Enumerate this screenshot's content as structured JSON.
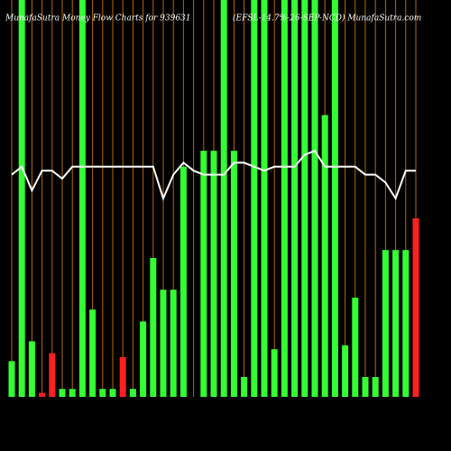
{
  "chart_data": {
    "type": "bar",
    "title": "MunafaSutra  Money Flow  Charts for 939631",
    "subtitle": "(EFSL-14.7%-26-SEP-NCD) MunafaSutra.com",
    "ylim": [
      0,
      100
    ],
    "values": [
      9,
      100,
      14,
      1,
      11,
      2,
      2,
      100,
      22,
      2,
      2,
      10,
      2,
      19,
      35,
      27,
      27,
      58,
      0,
      62,
      62,
      100,
      62,
      5,
      100,
      100,
      12,
      100,
      100,
      100,
      100,
      71,
      100,
      13,
      25,
      5,
      5,
      37,
      37,
      37,
      45
    ],
    "colors": [
      "#33ff33",
      "#33ff33",
      "#33ff33",
      "#ff2020",
      "#ff2020",
      "#33ff33",
      "#33ff33",
      "#33ff33",
      "#33ff33",
      "#33ff33",
      "#33ff33",
      "#ff2020",
      "#33ff33",
      "#33ff33",
      "#33ff33",
      "#33ff33",
      "#33ff33",
      "#33ff33",
      "#33ff33",
      "#33ff33",
      "#33ff33",
      "#33ff33",
      "#33ff33",
      "#33ff33",
      "#33ff33",
      "#33ff33",
      "#33ff33",
      "#33ff33",
      "#33ff33",
      "#33ff33",
      "#33ff33",
      "#33ff33",
      "#33ff33",
      "#33ff33",
      "#33ff33",
      "#33ff33",
      "#33ff33",
      "#33ff33",
      "#33ff33",
      "#33ff33",
      "#ff2020"
    ],
    "line": {
      "color": "#ffffff",
      "values": [
        56,
        58,
        52,
        57,
        57,
        55,
        58,
        58,
        58,
        58,
        58,
        58,
        58,
        58,
        58,
        50,
        56,
        59,
        57,
        56,
        56,
        56,
        59,
        59,
        58,
        57,
        58,
        58,
        58,
        61,
        62,
        58,
        58,
        58,
        58,
        56,
        56,
        54,
        50,
        57,
        57
      ]
    },
    "gridline_color": "#b8660b"
  }
}
